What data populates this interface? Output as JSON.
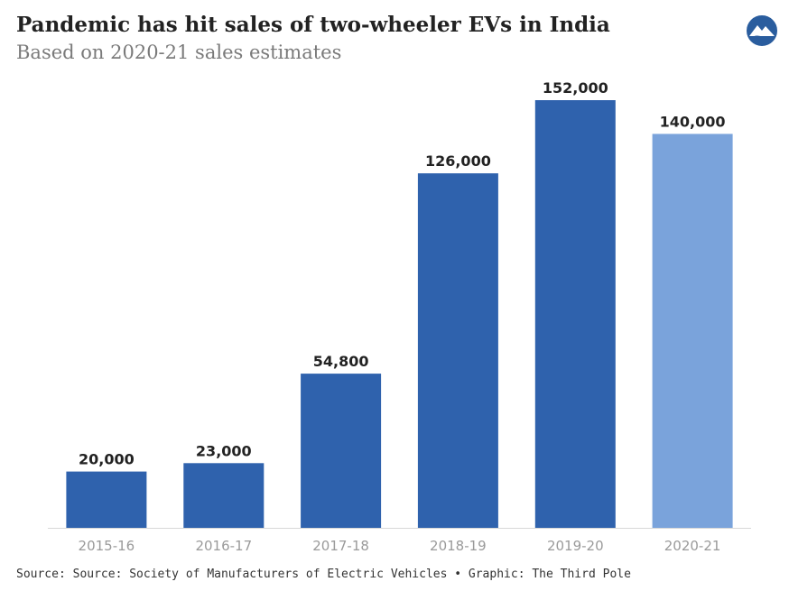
{
  "header": {
    "title": "Pandemic has hit sales of two-wheeler EVs in India",
    "subtitle": "Based on 2020-21 sales estimates"
  },
  "logo": {
    "icon": "mountain-river-logo-icon",
    "color": "#2a5d9e"
  },
  "footer": {
    "source": "Source: Source: Society of Manufacturers of Electric Vehicles • Graphic: The Third Pole"
  },
  "chart_data": {
    "type": "bar",
    "title": "Pandemic has hit sales of two-wheeler EVs in India",
    "subtitle": "Based on 2020-21 sales estimates",
    "categories": [
      "2015-16",
      "2016-17",
      "2017-18",
      "2018-19",
      "2019-20",
      "2020-21"
    ],
    "values": [
      20000,
      23000,
      54800,
      126000,
      152000,
      140000
    ],
    "value_labels": [
      "20,000",
      "23,000",
      "54,800",
      "126,000",
      "152,000",
      "140,000"
    ],
    "colors": [
      "#2f62ad",
      "#2f62ad",
      "#2f62ad",
      "#2f62ad",
      "#2f62ad",
      "#7aa3db"
    ],
    "ylim": [
      0,
      152000
    ],
    "grid": false,
    "legend": "none"
  }
}
